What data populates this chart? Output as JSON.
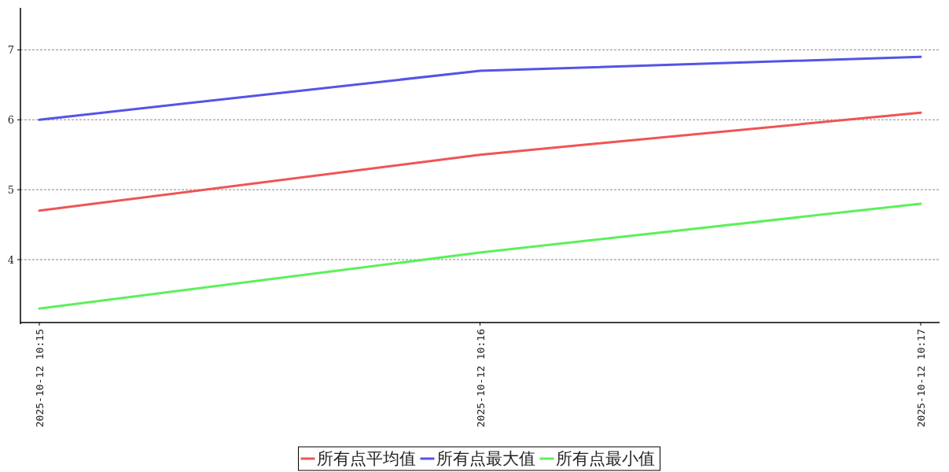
{
  "chart_data": {
    "type": "line",
    "categories": [
      "2025-10-12 10:15",
      "2025-10-12 10:16",
      "2025-10-12 10:17"
    ],
    "series": [
      {
        "name": "所有点平均值",
        "color": "#f05454",
        "values": [
          4.7,
          5.5,
          6.1
        ]
      },
      {
        "name": "所有点最大值",
        "color": "#5454e6",
        "values": [
          6.0,
          6.7,
          6.9
        ]
      },
      {
        "name": "所有点最小值",
        "color": "#5cf05c",
        "values": [
          3.3,
          4.1,
          4.8
        ]
      }
    ],
    "ylim": [
      3.1,
      7.6
    ],
    "yticks": [
      4,
      5,
      6,
      7
    ],
    "grid": "y",
    "legend": "bottom",
    "line_style": "solid",
    "marker": "none"
  }
}
